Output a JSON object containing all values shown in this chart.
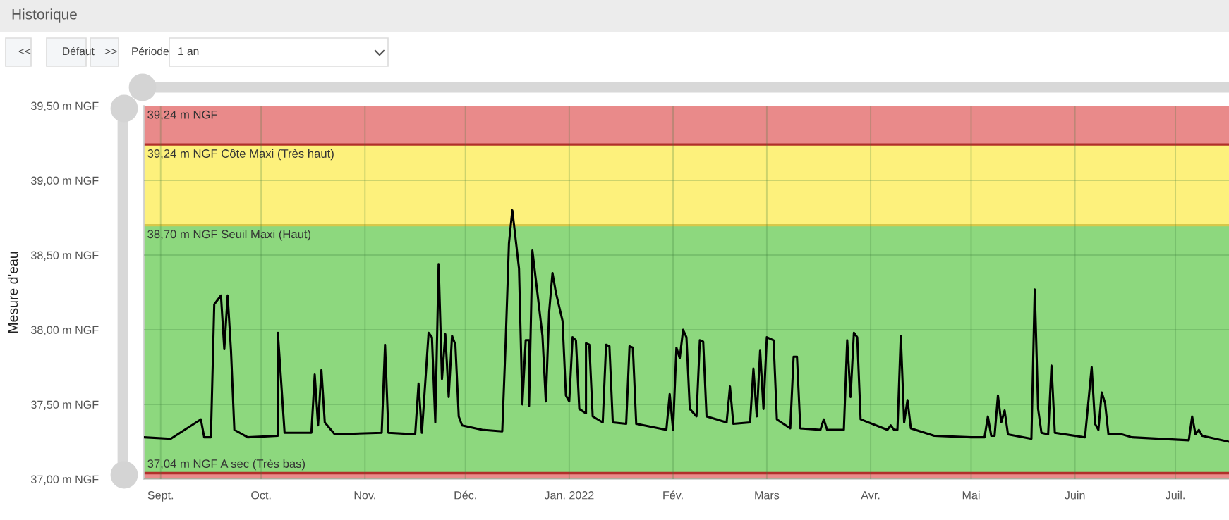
{
  "chart_data": {
    "type": "line",
    "title": "Historique",
    "ylabel": "Mesure d'eau",
    "annotations": [
      "<<",
      "Défaut",
      ">>",
      "Période",
      "1 an"
    ],
    "x": [
      "2021-08-27",
      "2021-09-04",
      "2021-09-13",
      "2021-09-14",
      "2021-09-16",
      "2021-09-17",
      "2021-09-19",
      "2021-09-20",
      "2021-09-21",
      "2021-09-22",
      "2021-09-23",
      "2021-09-27",
      "2021-10-06",
      "2021-10-06",
      "2021-10-08",
      "2021-10-16",
      "2021-10-17",
      "2021-10-18",
      "2021-10-19",
      "2021-10-20",
      "2021-10-23",
      "2021-11-06",
      "2021-11-07",
      "2021-11-08",
      "2021-11-16",
      "2021-11-17",
      "2021-11-18",
      "2021-11-20",
      "2021-11-21",
      "2021-11-22",
      "2021-11-23",
      "2021-11-24",
      "2021-11-25",
      "2021-11-26",
      "2021-11-27",
      "2021-11-28",
      "2021-11-29",
      "2021-11-30",
      "2021-12-06",
      "2021-12-12",
      "2021-12-13",
      "2021-12-14",
      "2021-12-15",
      "2021-12-17",
      "2021-12-18",
      "2021-12-19",
      "2021-12-20",
      "2021-12-20",
      "2021-12-21",
      "2021-12-24",
      "2021-12-25",
      "2021-12-26",
      "2021-12-27",
      "2021-12-28",
      "2021-12-30",
      "2021-12-31",
      "2022-01-01",
      "2022-01-02",
      "2022-01-03",
      "2022-01-04",
      "2022-01-06",
      "2022-01-06",
      "2022-01-07",
      "2022-01-08",
      "2022-01-11",
      "2022-01-12",
      "2022-01-13",
      "2022-01-14",
      "2022-01-18",
      "2022-01-19",
      "2022-01-20",
      "2022-01-21",
      "2022-01-30",
      "2022-01-31",
      "2022-02-01",
      "2022-02-02",
      "2022-02-03",
      "2022-02-04",
      "2022-02-05",
      "2022-02-06",
      "2022-02-08",
      "2022-02-09",
      "2022-02-10",
      "2022-02-11",
      "2022-02-17",
      "2022-02-18",
      "2022-02-19",
      "2022-02-24",
      "2022-02-25",
      "2022-02-26",
      "2022-02-27",
      "2022-02-28",
      "2022-03-01",
      "2022-03-03",
      "2022-03-04",
      "2022-03-08",
      "2022-03-09",
      "2022-03-10",
      "2022-03-11",
      "2022-03-17",
      "2022-03-18",
      "2022-03-19",
      "2022-03-24",
      "2022-03-25",
      "2022-03-26",
      "2022-03-27",
      "2022-03-28",
      "2022-03-29",
      "2022-04-06",
      "2022-04-07",
      "2022-04-08",
      "2022-04-09",
      "2022-04-10",
      "2022-04-11",
      "2022-04-12",
      "2022-04-13",
      "2022-04-20",
      "2022-05-01",
      "2022-05-05",
      "2022-05-06",
      "2022-05-07",
      "2022-05-08",
      "2022-05-09",
      "2022-05-10",
      "2022-05-11",
      "2022-05-12",
      "2022-05-19",
      "2022-05-20",
      "2022-05-21",
      "2022-05-22",
      "2022-05-24",
      "2022-05-25",
      "2022-05-26",
      "2022-06-04",
      "2022-06-06",
      "2022-06-07",
      "2022-06-08",
      "2022-06-09",
      "2022-06-10",
      "2022-06-11",
      "2022-06-15",
      "2022-06-18",
      "2022-07-05",
      "2022-07-06",
      "2022-07-07",
      "2022-07-08",
      "2022-07-09",
      "2022-07-17"
    ],
    "series": [
      {
        "color": "#000000",
        "values": [
          37.28,
          37.27,
          37.4,
          37.28,
          37.28,
          38.17,
          38.23,
          37.87,
          38.23,
          37.86,
          37.33,
          37.28,
          37.29,
          37.98,
          37.31,
          37.31,
          37.7,
          37.36,
          37.73,
          37.38,
          37.3,
          37.31,
          37.9,
          37.31,
          37.3,
          37.64,
          37.31,
          37.98,
          37.95,
          37.38,
          38.44,
          37.67,
          37.97,
          37.55,
          37.96,
          37.9,
          37.42,
          37.36,
          37.33,
          37.32,
          37.91,
          38.58,
          38.8,
          38.41,
          37.5,
          37.93,
          37.93,
          37.49,
          38.53,
          37.96,
          37.52,
          38.12,
          38.38,
          38.25,
          38.06,
          37.56,
          37.52,
          37.95,
          37.93,
          37.47,
          37.44,
          37.91,
          37.9,
          37.42,
          37.38,
          37.9,
          37.89,
          37.38,
          37.37,
          37.89,
          37.88,
          37.37,
          37.33,
          37.57,
          37.33,
          37.88,
          37.81,
          38.0,
          37.95,
          37.47,
          37.42,
          37.93,
          37.92,
          37.42,
          37.38,
          37.62,
          37.37,
          37.38,
          37.74,
          37.42,
          37.86,
          37.47,
          37.95,
          37.93,
          37.4,
          37.34,
          37.82,
          37.82,
          37.34,
          37.33,
          37.4,
          37.33,
          37.33,
          37.93,
          37.55,
          37.98,
          37.95,
          37.4,
          37.33,
          37.36,
          37.33,
          37.33,
          37.96,
          37.38,
          37.53,
          37.34,
          37.29,
          37.28,
          37.28,
          37.42,
          37.29,
          37.29,
          37.56,
          37.38,
          37.46,
          37.3,
          37.27,
          38.27,
          37.47,
          37.31,
          37.3,
          37.76,
          37.31,
          37.28,
          37.75,
          37.37,
          37.33,
          37.58,
          37.51,
          37.3,
          37.3,
          37.28,
          37.26,
          37.42,
          37.3,
          37.33,
          37.29,
          37.25
        ]
      }
    ],
    "xlim": [
      "2021-08-27",
      "2022-07-17"
    ],
    "xticks": [
      {
        "value": "2021-09-01",
        "label": "Sept."
      },
      {
        "value": "2021-10-01",
        "label": "Oct."
      },
      {
        "value": "2021-11-01",
        "label": "Nov."
      },
      {
        "value": "2021-12-01",
        "label": "Déc."
      },
      {
        "value": "2022-01-01",
        "label": "Jan. 2022"
      },
      {
        "value": "2022-02-01",
        "label": "Fév."
      },
      {
        "value": "2022-03-01",
        "label": "Mars"
      },
      {
        "value": "2022-04-01",
        "label": "Avr."
      },
      {
        "value": "2022-05-01",
        "label": "Mai"
      },
      {
        "value": "2022-06-01",
        "label": "Juin"
      },
      {
        "value": "2022-07-01",
        "label": "Juil."
      }
    ],
    "ylim": [
      37.0,
      39.5
    ],
    "yticks": [
      {
        "value": 37.0,
        "label": "37,00 m NGF"
      },
      {
        "value": 37.5,
        "label": "37,50 m NGF"
      },
      {
        "value": 38.0,
        "label": "38,00 m NGF"
      },
      {
        "value": 38.5,
        "label": "38,50 m NGF"
      },
      {
        "value": 39.0,
        "label": "39,00 m NGF"
      },
      {
        "value": 39.5,
        "label": "39,50 m NGF"
      }
    ],
    "bands": [
      {
        "axis": "y",
        "from": 39.24,
        "to": 39.5,
        "label": "39,24 m NGF",
        "color": "#e98a8a"
      },
      {
        "axis": "y",
        "from": 38.7,
        "to": 39.24,
        "label": "39,24 m NGF Côte Maxi (Très haut)",
        "color": "#fdf17c"
      },
      {
        "axis": "y",
        "from": 37.04,
        "to": 38.7,
        "label": "38,70 m NGF Seuil Maxi (Haut)",
        "color": "#8dd87e"
      },
      {
        "axis": "y",
        "from": 37.0,
        "to": 37.04,
        "label": "37,04 m NGF A sec (Très bas)",
        "color": "#e98a8a"
      }
    ],
    "ref_lines": [
      {
        "axis": "y",
        "value": 39.24,
        "color": "#b0302a"
      },
      {
        "axis": "y",
        "value": 38.7,
        "color": "#d8c84a"
      },
      {
        "axis": "y",
        "value": 37.04,
        "color": "#b0302a"
      }
    ],
    "grid": true,
    "line_style": "solid",
    "marker": "none"
  }
}
